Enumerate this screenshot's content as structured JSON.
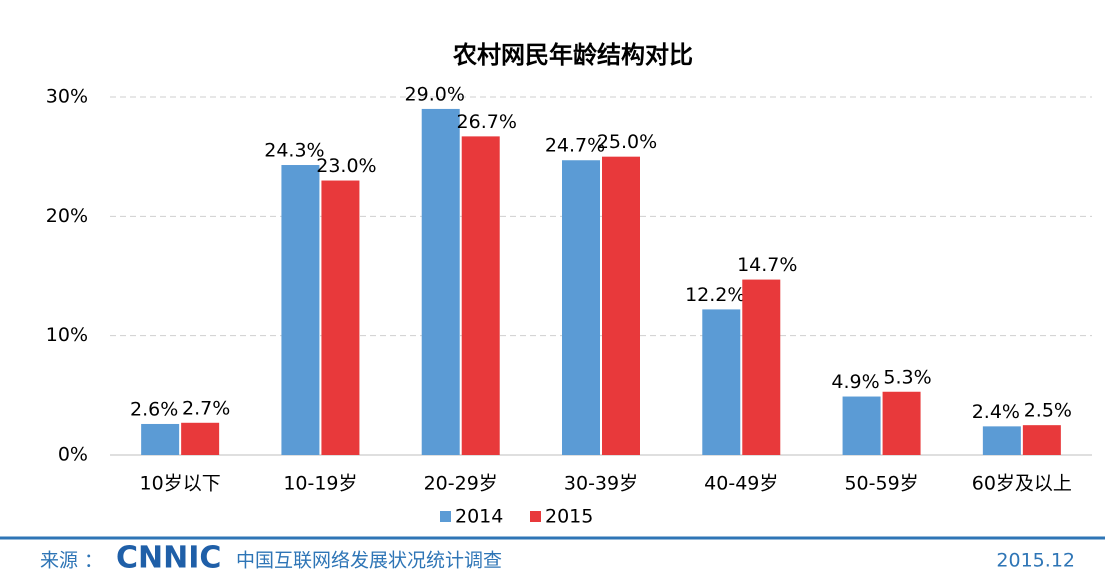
{
  "chart_data": {
    "type": "bar",
    "title": "农村网民年龄结构对比",
    "categories": [
      "10岁以下",
      "10-19岁",
      "20-29岁",
      "30-39岁",
      "40-49岁",
      "50-59岁",
      "60岁及以上"
    ],
    "series": [
      {
        "name": "2014",
        "color": "#5b9bd5",
        "values": [
          2.6,
          24.3,
          29.0,
          24.7,
          12.2,
          4.9,
          2.4
        ],
        "value_labels": [
          "2.6%",
          "24.3%",
          "29.0%",
          "24.7%",
          "12.2%",
          "4.9%",
          "2.4%"
        ]
      },
      {
        "name": "2015",
        "color": "#e8393b",
        "values": [
          2.7,
          23.0,
          26.7,
          25.0,
          14.7,
          5.3,
          2.5
        ],
        "value_labels": [
          "2.7%",
          "23.0%",
          "26.7%",
          "25.0%",
          "14.7%",
          "5.3%",
          "2.5%"
        ]
      }
    ],
    "ylim": [
      0,
      30
    ],
    "yticks": [
      {
        "value": 0,
        "label": "0%"
      },
      {
        "value": 10,
        "label": "10%"
      },
      {
        "value": 20,
        "label": "20%"
      },
      {
        "value": 30,
        "label": "30%"
      }
    ],
    "grid": true
  },
  "footer": {
    "source_label": "来源 ：",
    "logo": "CNNIC",
    "source": "中国互联网络发展状况统计调查",
    "date": "2015.12"
  }
}
